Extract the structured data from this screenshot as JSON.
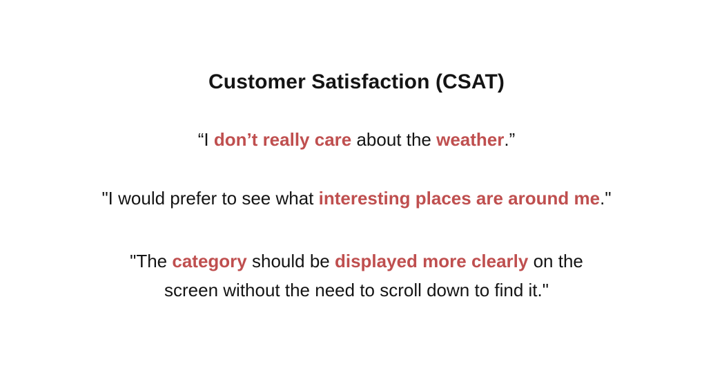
{
  "title": "Customer Satisfaction (CSAT)",
  "colors": {
    "highlight": "#bf4f4f",
    "text": "#141414",
    "background": "#ffffff"
  },
  "quotes": [
    {
      "parts": [
        "“I ",
        "don’t really care",
        " about the ",
        "weather",
        ".”"
      ]
    },
    {
      "parts": [
        "\"I would prefer to see what ",
        "interesting places are around me",
        ".\""
      ]
    },
    {
      "parts": [
        "\"The ",
        "category",
        " should be ",
        "displayed more clearly",
        " on the",
        "screen without the need to scroll down to find it.\""
      ]
    }
  ]
}
